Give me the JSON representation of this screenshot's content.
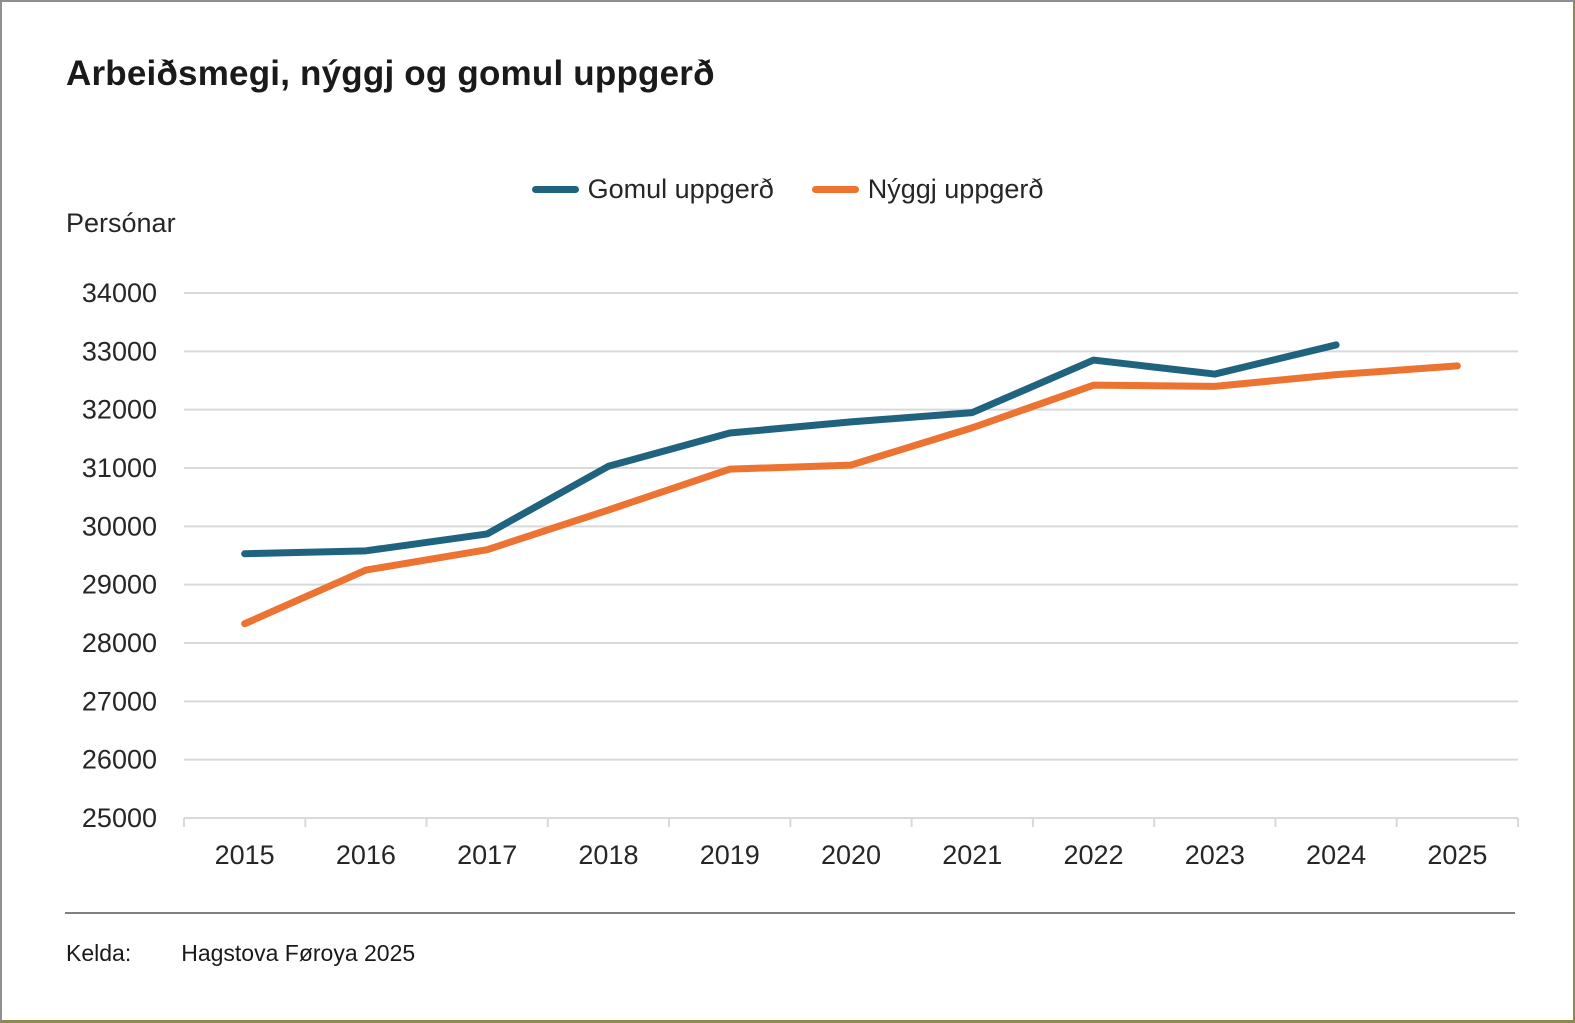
{
  "title": "Arbeiðsmegi, nýggj og gomul uppgerð",
  "source": {
    "label": "Kelda:",
    "text": "Hagstova Føroya 2025"
  },
  "colors": {
    "gridline": "#d9d9d9",
    "axis": "#d9d9d9",
    "tick_text": "#262626",
    "separator": "#808080"
  },
  "chart_data": {
    "type": "line",
    "title": "Arbeiðsmegi, nýggj og gomul uppgerð",
    "ylabel": "Persónar",
    "xlabel": "",
    "categories": [
      "2015",
      "2016",
      "2017",
      "2018",
      "2019",
      "2020",
      "2021",
      "2022",
      "2023",
      "2024",
      "2025"
    ],
    "series": [
      {
        "name": "Gomul uppgerð",
        "color": "#20637f",
        "values": [
          29530,
          29580,
          29870,
          31030,
          31600,
          31790,
          31950,
          32850,
          32610,
          33110
        ]
      },
      {
        "name": "Nýggj uppgerð",
        "color": "#ec7331",
        "values": [
          28330,
          29250,
          29600,
          30280,
          30980,
          31050,
          31690,
          32420,
          32400,
          32600,
          32750
        ]
      }
    ],
    "ylim": [
      25000,
      34000
    ],
    "y_tick_step": 1000,
    "y_ticks": [
      25000,
      26000,
      27000,
      28000,
      29000,
      30000,
      31000,
      32000,
      33000,
      34000
    ],
    "grid": true,
    "legend_position": "top-center"
  }
}
